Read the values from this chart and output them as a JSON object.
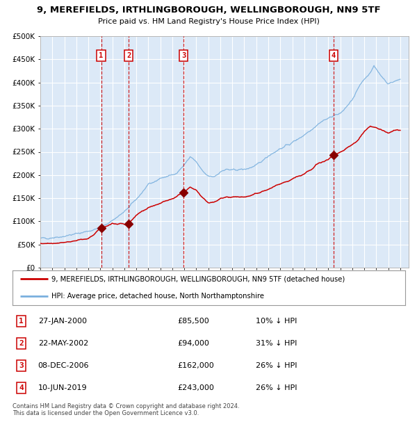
{
  "title1": "9, MEREFIELDS, IRTHLINGBOROUGH, WELLINGBOROUGH, NN9 5TF",
  "title2": "Price paid vs. HM Land Registry's House Price Index (HPI)",
  "hpi_label": "HPI: Average price, detached house, North Northamptonshire",
  "property_label": "9, MEREFIELDS, IRTHLINGBOROUGH, WELLINGBOROUGH, NN9 5TF (detached house)",
  "footer": "Contains HM Land Registry data © Crown copyright and database right 2024.\nThis data is licensed under the Open Government Licence v3.0.",
  "transactions": [
    {
      "num": 1,
      "date": "27-JAN-2000",
      "price": 85500,
      "pct": "10%",
      "x": 2000.07
    },
    {
      "num": 2,
      "date": "22-MAY-2002",
      "price": 94000,
      "pct": "31%",
      "x": 2002.38
    },
    {
      "num": 3,
      "date": "08-DEC-2006",
      "price": 162000,
      "pct": "26%",
      "x": 2006.93
    },
    {
      "num": 4,
      "date": "10-JUN-2019",
      "price": 243000,
      "pct": "26%",
      "x": 2019.44
    }
  ],
  "ylim": [
    0,
    500000
  ],
  "xlim_start": 1995.0,
  "xlim_end": 2025.7,
  "plot_bg": "#dce9f7",
  "grid_color": "#ffffff",
  "hpi_color": "#7ab0de",
  "property_color": "#cc0000",
  "dashed_color": "#cc0000",
  "marker_color": "#880000",
  "label_color": "#cc0000",
  "ytick_labels": [
    "£0",
    "£50K",
    "£100K",
    "£150K",
    "£200K",
    "£250K",
    "£300K",
    "£350K",
    "£400K",
    "£450K",
    "£500K"
  ],
  "ytick_values": [
    0,
    50000,
    100000,
    150000,
    200000,
    250000,
    300000,
    350000,
    400000,
    450000,
    500000
  ],
  "hpi_anchors_x": [
    1995.0,
    1996.0,
    1997.0,
    1998.0,
    1999.0,
    2000.0,
    2001.0,
    2002.0,
    2003.0,
    2004.0,
    2005.0,
    2006.0,
    2006.5,
    2007.0,
    2007.5,
    2008.0,
    2008.5,
    2009.0,
    2009.5,
    2010.0,
    2010.5,
    2011.0,
    2011.5,
    2012.0,
    2013.0,
    2014.0,
    2015.0,
    2016.0,
    2017.0,
    2017.5,
    2018.0,
    2018.5,
    2019.0,
    2019.5,
    2020.0,
    2020.5,
    2021.0,
    2021.5,
    2022.0,
    2022.5,
    2022.8,
    2023.0,
    2023.5,
    2024.0,
    2024.5,
    2025.0
  ],
  "hpi_anchors_y": [
    63000,
    65000,
    68000,
    73000,
    79000,
    86000,
    102000,
    120000,
    148000,
    178000,
    193000,
    200000,
    208000,
    222000,
    240000,
    228000,
    208000,
    197000,
    197000,
    207000,
    212000,
    210000,
    212000,
    212000,
    220000,
    242000,
    257000,
    270000,
    287000,
    297000,
    307000,
    317000,
    322000,
    330000,
    332000,
    347000,
    362000,
    387000,
    407000,
    422000,
    437000,
    427000,
    412000,
    397000,
    402000,
    407000
  ],
  "prop_anchors_x": [
    1995.0,
    1996.0,
    1997.0,
    1998.0,
    1999.0,
    2000.07,
    2001.0,
    2002.38,
    2003.0,
    2004.0,
    2005.0,
    2006.0,
    2006.93,
    2007.5,
    2008.0,
    2008.5,
    2009.0,
    2009.5,
    2010.0,
    2010.5,
    2011.0,
    2011.5,
    2012.0,
    2012.5,
    2013.0,
    2014.0,
    2015.0,
    2016.0,
    2017.0,
    2018.0,
    2018.5,
    2019.0,
    2019.44,
    2020.0,
    2020.5,
    2021.0,
    2021.5,
    2022.0,
    2022.5,
    2023.0,
    2023.5,
    2024.0,
    2024.5,
    2025.0
  ],
  "prop_anchors_y": [
    52000,
    53000,
    55000,
    58000,
    62000,
    85500,
    95000,
    94000,
    112000,
    130000,
    140000,
    149000,
    162000,
    176000,
    166000,
    153000,
    141000,
    141000,
    148000,
    153000,
    153000,
    153000,
    153000,
    156000,
    159000,
    169000,
    181000,
    191000,
    202000,
    222000,
    229000,
    233000,
    243000,
    248000,
    258000,
    266000,
    276000,
    294000,
    306000,
    303000,
    296000,
    291000,
    296000,
    296000
  ]
}
